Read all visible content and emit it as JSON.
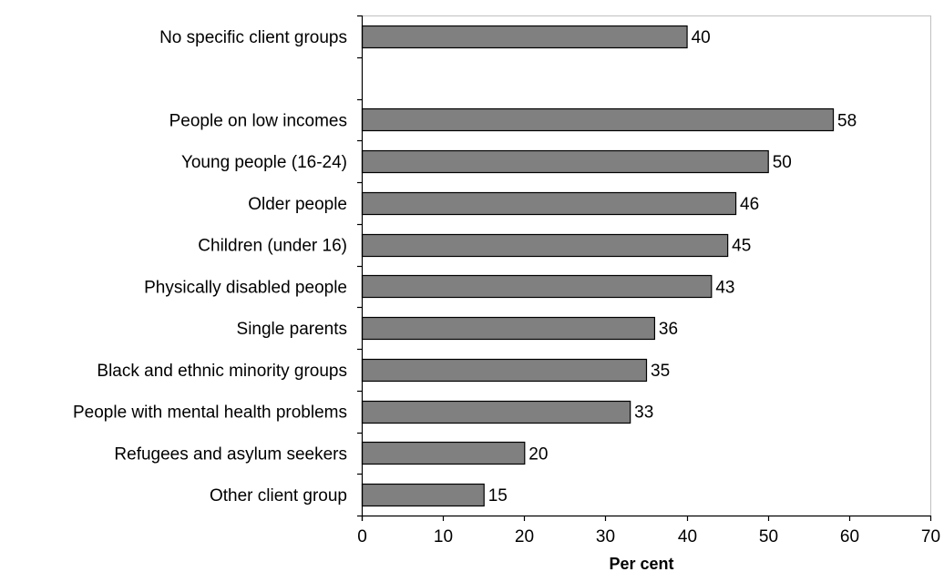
{
  "chart_data": {
    "type": "bar",
    "orientation": "horizontal",
    "categories": [
      "No specific client groups",
      "",
      "People on low incomes",
      "Young people (16-24)",
      "Older people",
      "Children (under 16)",
      "Physically disabled people",
      "Single parents",
      "Black and ethnic minority groups",
      "People with mental health problems",
      "Refugees and asylum seekers",
      "Other client group"
    ],
    "values": [
      40,
      null,
      58,
      50,
      46,
      45,
      43,
      36,
      35,
      33,
      20,
      15
    ],
    "data_labels": [
      "40",
      "",
      "58",
      "50",
      "46",
      "45",
      "43",
      "36",
      "35",
      "33",
      "20",
      "15"
    ],
    "xlabel": "Per cent",
    "ylabel": "",
    "xlim": [
      0,
      70
    ],
    "xticks": [
      0,
      10,
      20,
      30,
      40,
      50,
      60,
      70
    ],
    "grid": false,
    "legend": "none",
    "colors": {
      "bar_fill": "#808080",
      "bar_stroke": "#000000",
      "frame": "#c0c0c0",
      "axis": "#000000"
    }
  }
}
